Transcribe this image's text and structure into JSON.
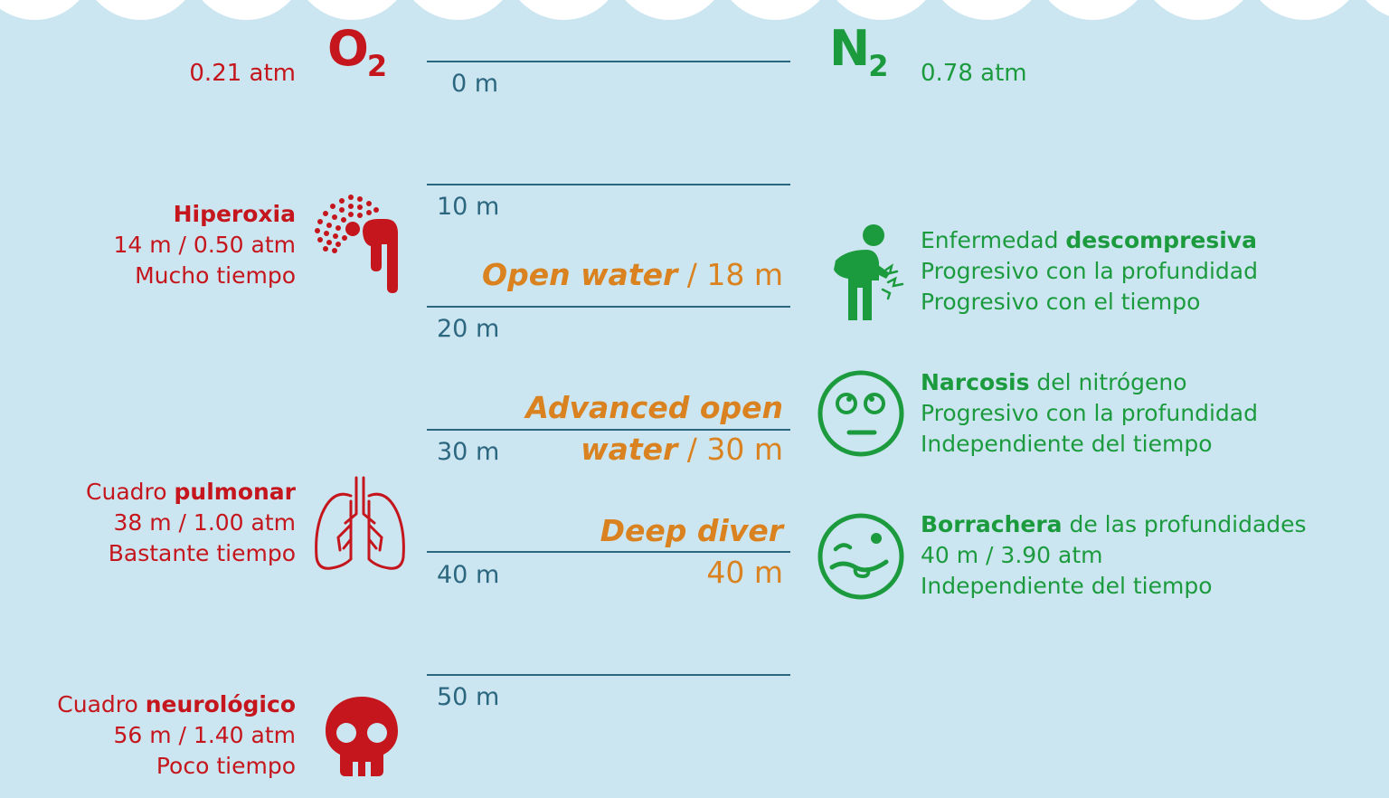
{
  "colors": {
    "water": "#cce6f1",
    "foam": "#ffffff",
    "oxygen_red": "#c4161c",
    "nitrogen_green": "#1c9b3e",
    "depth_blue": "#2c6780",
    "certification_orange": "#d9821f"
  },
  "oxygen": {
    "symbol": "O",
    "subscript": "2",
    "surface_pressure": "0.21 atm",
    "effects": [
      {
        "pre": "",
        "bold": "Hiperoxia",
        "post": "",
        "detail": "14 m / 0.50 atm",
        "time": "Mucho tiempo",
        "icon": "inhalation-icon"
      },
      {
        "pre": "Cuadro ",
        "bold": "pulmonar",
        "post": "",
        "detail": "38 m / 1.00 atm",
        "time": "Bastante tiempo",
        "icon": "lungs-icon"
      },
      {
        "pre": "Cuadro ",
        "bold": "neurológico",
        "post": "",
        "detail": "56 m / 1.40 atm",
        "time": "Poco tiempo",
        "icon": "skull-icon"
      }
    ]
  },
  "nitrogen": {
    "symbol": "N",
    "subscript": "2",
    "surface_pressure": "0.78 atm",
    "effects": [
      {
        "pre": "Enfermedad ",
        "bold": "descompresiva",
        "post": "",
        "detail": "Progresivo con la profundidad",
        "time": "Progresivo con el tiempo",
        "icon": "person-in-pain-icon"
      },
      {
        "pre": "",
        "bold": "Narcosis",
        "post": " del nitrógeno",
        "detail": "Progresivo con la profundidad",
        "time": "Independiente del tiempo",
        "icon": "dizzy-face-icon"
      },
      {
        "pre": "",
        "bold": "Borrachera",
        "post": " de las profundidades",
        "detail": "40 m / 3.90 atm",
        "time": "Independiente del tiempo",
        "icon": "drunk-face-icon"
      }
    ]
  },
  "depth_scale": [
    "0 m",
    "10 m",
    "20 m",
    "30 m",
    "40 m",
    "50 m"
  ],
  "certifications": [
    {
      "lines": [
        {
          "name": "Open water",
          "depth": " / 18 m"
        }
      ]
    },
    {
      "lines": [
        {
          "name": "Advanced open",
          "depth": ""
        },
        {
          "name": "water",
          "depth": " / 30 m"
        }
      ]
    },
    {
      "lines": [
        {
          "name": "Deep diver",
          "depth": ""
        },
        {
          "name": "",
          "depth": "40 m"
        }
      ]
    }
  ]
}
